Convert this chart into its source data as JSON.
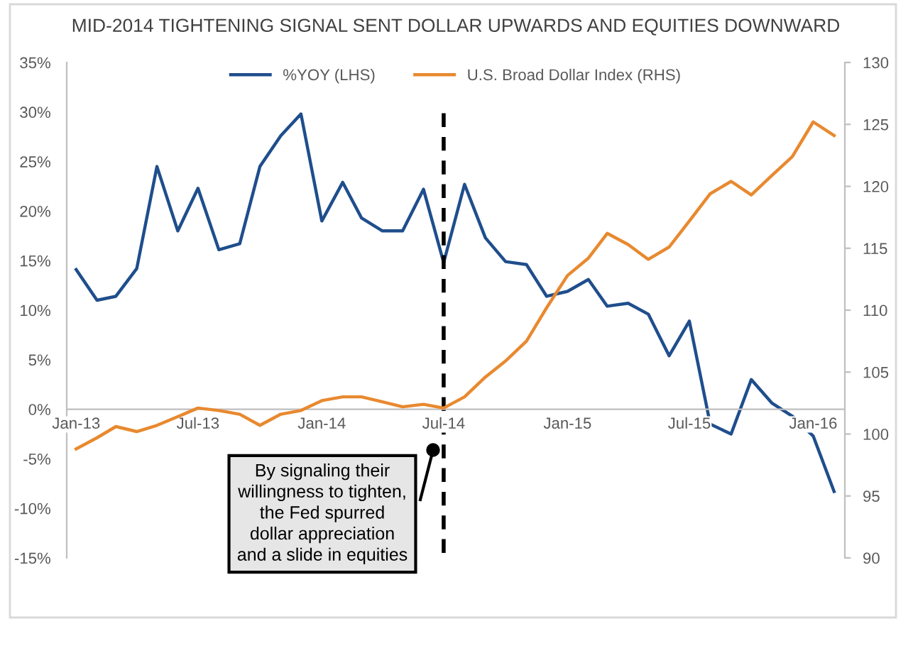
{
  "chart_data": {
    "type": "line",
    "title": "MID-2014 TIGHTENING SIGNAL SENT DOLLAR UPWARDS AND EQUITIES DOWNWARD",
    "x": [
      "2013-01",
      "2013-02",
      "2013-03",
      "2013-04",
      "2013-05",
      "2013-06",
      "2013-07",
      "2013-08",
      "2013-09",
      "2013-10",
      "2013-11",
      "2013-12",
      "2014-01",
      "2014-02",
      "2014-03",
      "2014-04",
      "2014-05",
      "2014-06",
      "2014-07",
      "2014-08",
      "2014-09",
      "2014-10",
      "2014-11",
      "2014-12",
      "2015-01",
      "2015-02",
      "2015-03",
      "2015-04",
      "2015-05",
      "2015-06",
      "2015-07",
      "2015-08",
      "2015-09",
      "2015-10",
      "2015-11",
      "2015-12",
      "2016-01",
      "2016-02"
    ],
    "series": [
      {
        "name": "%YOY (LHS)",
        "color": "#1f4e8c",
        "values": [
          14.1,
          11.0,
          11.4,
          14.2,
          24.5,
          18.0,
          22.3,
          16.1,
          16.7,
          24.5,
          27.6,
          29.8,
          19.0,
          22.9,
          19.3,
          18.0,
          18.0,
          22.2,
          14.8,
          22.7,
          17.3,
          14.9,
          14.6,
          11.4,
          11.9,
          13.1,
          10.4,
          10.7,
          9.6,
          5.4,
          8.9,
          -1.5,
          -2.5,
          3.0,
          0.6,
          -0.7,
          -2.7,
          -8.3
        ]
      },
      {
        "name": "U.S. Broad Dollar Index (RHS)",
        "color": "#e8892f",
        "axis": "y2",
        "values": [
          98.8,
          99.7,
          100.6,
          100.2,
          100.7,
          101.4,
          102.1,
          101.9,
          101.6,
          100.7,
          101.6,
          101.9,
          102.7,
          103.0,
          103.0,
          102.6,
          102.2,
          102.4,
          102.1,
          103.0,
          104.6,
          105.9,
          107.5,
          110.2,
          112.8,
          114.2,
          116.2,
          115.3,
          114.1,
          115.1,
          117.2,
          119.4,
          120.4,
          119.3,
          120.9,
          122.4,
          125.2,
          124.1
        ]
      }
    ],
    "xlim": [
      "2012-12-18",
      "2016-02-17"
    ],
    "xticks": [
      {
        "value": "2013-01",
        "label": "Jan-13"
      },
      {
        "value": "2013-07",
        "label": "Jul-13"
      },
      {
        "value": "2014-01",
        "label": "Jan-14"
      },
      {
        "value": "2014-07",
        "label": "Jul-14"
      },
      {
        "value": "2015-01",
        "label": "Jan-15"
      },
      {
        "value": "2015-07",
        "label": "Jul-15"
      },
      {
        "value": "2016-01",
        "label": "Jan-16"
      }
    ],
    "ylim": [
      -15,
      35
    ],
    "yticks": [
      {
        "value": -15,
        "label": "-15%"
      },
      {
        "value": -10,
        "label": "-10%"
      },
      {
        "value": -5,
        "label": "-5%"
      },
      {
        "value": 0,
        "label": "0%"
      },
      {
        "value": 5,
        "label": "5%"
      },
      {
        "value": 10,
        "label": "10%"
      },
      {
        "value": 15,
        "label": "15%"
      },
      {
        "value": 20,
        "label": "20%"
      },
      {
        "value": 25,
        "label": "25%"
      },
      {
        "value": 30,
        "label": "30%"
      },
      {
        "value": 35,
        "label": "35%"
      }
    ],
    "y2lim": [
      90,
      130
    ],
    "y2ticks": [
      90,
      95,
      100,
      105,
      110,
      115,
      120,
      125,
      130
    ],
    "ref_lines": [
      {
        "axis": "x",
        "value": "2014-07",
        "color": "#000000",
        "line_style": "dashed"
      }
    ],
    "annotations": [
      "By signaling their\nwillingness to tighten,\nthe Fed spurred\ndollar appreciation\nand a slide in equities"
    ],
    "legend": "top"
  }
}
